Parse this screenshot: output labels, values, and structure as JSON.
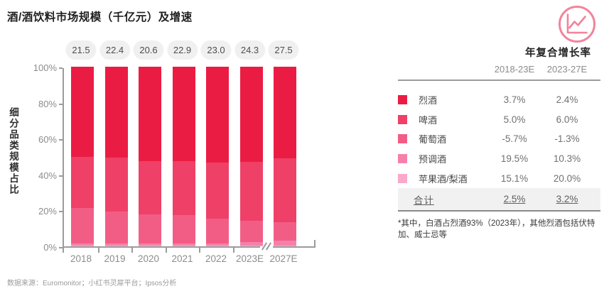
{
  "page": {
    "title": "酒/酒饮料市场规模（千亿元）及增速",
    "footnote": "*其中，白酒占烈酒93%（2023年），其他烈酒包括伏特加、威士忌等",
    "source": "数据来源：Euromonitor；小红书灵犀平台；Ipsos分析"
  },
  "chart_data": {
    "type": "bar",
    "stacked": true,
    "title": "酒/酒饮料市场规模（千亿元）及增速",
    "ylabel": "细分品类规模占比",
    "ylim": [
      0,
      100
    ],
    "y_ticks": [
      "100%",
      "80%",
      "60%",
      "40%",
      "20%",
      "0%"
    ],
    "categories": [
      "2018",
      "2019",
      "2020",
      "2021",
      "2022",
      "2023E",
      "2027E"
    ],
    "total_labels": [
      "21.5",
      "22.4",
      "20.6",
      "22.9",
      "23.0",
      "24.3",
      "27.5"
    ],
    "axis_break_between": [
      "2023E",
      "2027E"
    ],
    "unit": "千亿元",
    "series": [
      {
        "name": "烈酒",
        "color": "#eb1c43",
        "values": [
          50.2,
          50.5,
          52.4,
          52.4,
          53.2,
          53.0,
          51.0
        ]
      },
      {
        "name": "啤酒",
        "color": "#ef4067",
        "values": [
          28.5,
          30.2,
          29.9,
          30.3,
          31.3,
          32.6,
          35.5
        ]
      },
      {
        "name": "葡萄酒",
        "color": "#f25d86",
        "values": [
          19.8,
          17.8,
          16.2,
          15.8,
          13.8,
          12.2,
          10.4
        ]
      },
      {
        "name": "预调酒",
        "color": "#f581ab",
        "values": [
          1.2,
          1.2,
          1.2,
          1.2,
          1.4,
          1.8,
          2.6
        ]
      },
      {
        "name": "苹果酒/梨酒",
        "color": "#f8a9cc",
        "values": [
          0.3,
          0.3,
          0.3,
          0.3,
          0.3,
          0.4,
          0.5
        ]
      }
    ]
  },
  "cagr_table": {
    "title": "年复合增长率",
    "columns": [
      "2018-23E",
      "2023-27E"
    ],
    "rows": [
      {
        "label": "烈酒",
        "color": "#eb1c43",
        "v1": "3.7%",
        "v2": "2.4%"
      },
      {
        "label": "啤酒",
        "color": "#ef4067",
        "v1": "5.0%",
        "v2": "6.0%"
      },
      {
        "label": "葡萄酒",
        "color": "#f25d86",
        "v1": "-5.7%",
        "v2": "-1.3%"
      },
      {
        "label": "预调酒",
        "color": "#f581ab",
        "v1": "19.5%",
        "v2": "10.3%"
      },
      {
        "label": "苹果酒/梨酒",
        "color": "#f8a9cc",
        "v1": "15.1%",
        "v2": "20.0%"
      }
    ],
    "total": {
      "label": "合计",
      "v1": "2.5%",
      "v2": "3.2%"
    }
  },
  "icons": {
    "trend_icon": "line-chart-in-circle",
    "trend_icon_color": "#f2839b"
  },
  "layout_colors": {
    "axis": "#9b9b9b",
    "pill_bg": "#f0f0f1",
    "total_row_bg": "#f1f1f1"
  }
}
